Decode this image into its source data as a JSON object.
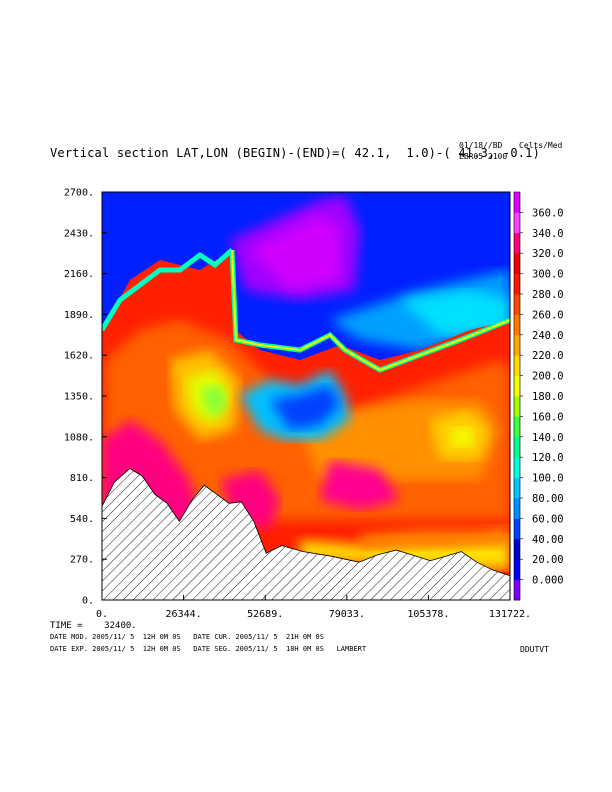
{
  "header": {
    "title": "Vertical section LAT,LON (BEGIN)-(END)=( 42.1,  1.0)-( 41.3, -0.1)",
    "date": "01/18//BD",
    "units": "Celts/Med",
    "run": "EBR05 2100"
  },
  "footer": {
    "time": "TIME =    32400.",
    "date_mod": "DATE MOD. 2005/11/ 5  12H 0M 0S   DATE CUR. 2005/11/ 5  21H 0M 0S",
    "date_exp": "DATE EXP. 2005/11/ 5  12H 0M 0S   DATE SEG. 2005/11/ 5  18H 0M 0S   LAMBERT",
    "program": "DDUTVT"
  },
  "chart_data": {
    "type": "heatmap",
    "title": "Vertical section LAT,LON (BEGIN)-(END)=( 42.1,  1.0)-( 41.3, -0.1)",
    "xlabel": "",
    "ylabel": "",
    "x_ticks": [
      "0.",
      "26344.",
      "52689.",
      "79033.",
      "105378.",
      "131722."
    ],
    "y_ticks": [
      "0.",
      "270.",
      "540.",
      "810.",
      "1080.",
      "1350.",
      "1620.",
      "1890.",
      "2160.",
      "2430.",
      "2700."
    ],
    "xlim": [
      0,
      131722
    ],
    "ylim": [
      0,
      2700
    ],
    "colorbar": {
      "labels": [
        "0.000",
        "20.00",
        "40.00",
        "60.00",
        "80.00",
        "100.0",
        "120.0",
        "140.0",
        "160.0",
        "180.0",
        "200.0",
        "220.0",
        "240.0",
        "260.0",
        "280.0",
        "300.0",
        "320.0",
        "340.0",
        "360.0"
      ],
      "colors": [
        "#8000ff",
        "#0000ff",
        "#0000cc",
        "#0040ff",
        "#0090ff",
        "#00c8ff",
        "#00ffe0",
        "#00ff90",
        "#40ff40",
        "#a0ff00",
        "#f0ff00",
        "#ffd800",
        "#ffa800",
        "#ff7800",
        "#ff4800",
        "#ff1800",
        "#f00000",
        "#ff0080",
        "#ff40ff",
        "#e000ff"
      ]
    },
    "terrain": {
      "x": [
        0,
        4000,
        9000,
        13000,
        17000,
        21000,
        25000,
        29000,
        33000,
        37000,
        41000,
        45000,
        49000,
        53000,
        58000,
        65000,
        74000,
        83000,
        89000,
        95000,
        100000,
        106000,
        111000,
        116000,
        121000,
        126000,
        131722
      ],
      "y": [
        620,
        780,
        870,
        820,
        700,
        640,
        520,
        660,
        760,
        700,
        640,
        650,
        520,
        310,
        360,
        320,
        290,
        250,
        300,
        330,
        300,
        260,
        290,
        320,
        250,
        200,
        160
      ]
    },
    "grid": false
  }
}
